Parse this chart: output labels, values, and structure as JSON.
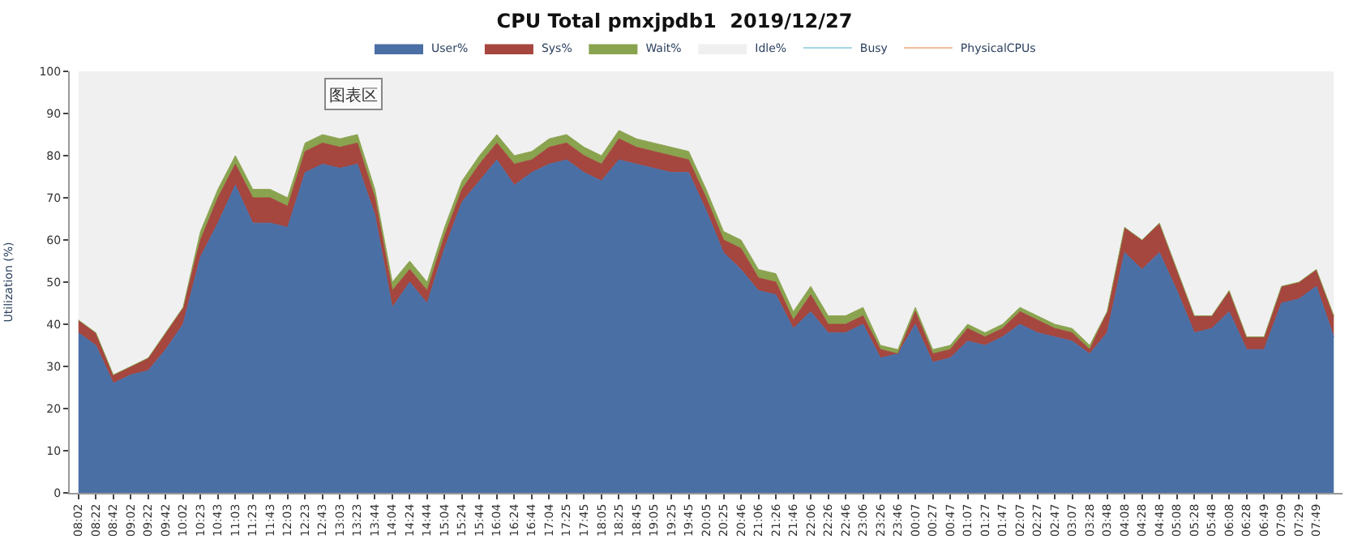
{
  "chart_data": {
    "type": "area",
    "title": "CPU Total pmxjpdb1  2019/12/27",
    "ylabel": "Utilization (%)",
    "stacked": true,
    "legend": "top",
    "ylim": [
      0,
      100
    ],
    "yticks": [
      0,
      10,
      20,
      30,
      40,
      50,
      60,
      70,
      80,
      90,
      100
    ],
    "annotations": [
      "图表区"
    ],
    "categories": [
      "08:02",
      "08:22",
      "08:42",
      "09:02",
      "09:22",
      "09:42",
      "10:02",
      "10:23",
      "10:43",
      "11:03",
      "11:23",
      "11:43",
      "12:03",
      "12:23",
      "12:43",
      "13:03",
      "13:23",
      "13:44",
      "14:04",
      "14:24",
      "14:44",
      "15:04",
      "15:24",
      "15:44",
      "16:04",
      "16:24",
      "16:44",
      "17:04",
      "17:25",
      "17:45",
      "18:05",
      "18:25",
      "18:45",
      "19:05",
      "19:25",
      "19:45",
      "20:05",
      "20:25",
      "20:46",
      "21:06",
      "21:26",
      "21:46",
      "22:06",
      "22:26",
      "22:46",
      "23:06",
      "23:26",
      "23:46",
      "00:07",
      "00:27",
      "00:47",
      "01:07",
      "01:27",
      "01:47",
      "02:07",
      "02:27",
      "02:47",
      "03:07",
      "03:28",
      "03:48",
      "04:08",
      "04:28",
      "04:48",
      "05:08",
      "05:28",
      "05:48",
      "06:08",
      "06:28",
      "06:49",
      "07:09",
      "07:29",
      "07:49",
      null
    ],
    "series": [
      {
        "name": "User%",
        "color": "#4a6fa5",
        "values": [
          38,
          35,
          26,
          28,
          29,
          34,
          40,
          56,
          64,
          73,
          64,
          64,
          63,
          76,
          78,
          77,
          78,
          66,
          44,
          50,
          45,
          58,
          69,
          74,
          79,
          73,
          76,
          78,
          79,
          76,
          74,
          79,
          78,
          77,
          76,
          76,
          67,
          57,
          53,
          48,
          47,
          39,
          43,
          38,
          38,
          40,
          32,
          33,
          40,
          31,
          32,
          36,
          35,
          37,
          40,
          38,
          37,
          36,
          33,
          38,
          57,
          53,
          57,
          48,
          38,
          39,
          43,
          34,
          34,
          45,
          46,
          49,
          37
        ]
      },
      {
        "name": "Sys%",
        "color": "#a5463f",
        "values": [
          3,
          3,
          2,
          2,
          3,
          4,
          4,
          4,
          6,
          5,
          6,
          6,
          5,
          5,
          5,
          5,
          5,
          4,
          4,
          3,
          3,
          3,
          3,
          4,
          4,
          5,
          3,
          4,
          4,
          4,
          4,
          5,
          4,
          4,
          4,
          3,
          3,
          3,
          5,
          3,
          3,
          2,
          4,
          2,
          2,
          2,
          2,
          0,
          3,
          2,
          2,
          3,
          2,
          2,
          3,
          3,
          2,
          2,
          1,
          5,
          6,
          7,
          7,
          5,
          4,
          3,
          5,
          3,
          3,
          4,
          4,
          4,
          5
        ]
      },
      {
        "name": "Wait%",
        "color": "#8aa34f",
        "values": [
          0,
          0,
          0,
          0,
          0,
          0,
          0,
          2,
          2,
          2,
          2,
          2,
          2,
          2,
          2,
          2,
          2,
          2,
          2,
          2,
          2,
          2,
          2,
          2,
          2,
          2,
          2,
          2,
          2,
          2,
          2,
          2,
          2,
          2,
          2,
          2,
          2,
          2,
          2,
          2,
          2,
          2,
          2,
          2,
          2,
          2,
          1,
          1,
          1,
          1,
          1,
          1,
          1,
          1,
          1,
          1,
          1,
          1,
          1,
          0,
          0,
          0,
          0,
          0,
          0,
          0,
          0,
          0,
          0,
          0,
          0,
          0,
          0
        ]
      },
      {
        "name": "Idle%",
        "color": "#f0f0f0",
        "values": [
          59,
          62,
          72,
          70,
          68,
          62,
          56,
          38,
          28,
          20,
          28,
          28,
          30,
          17,
          15,
          16,
          15,
          28,
          50,
          45,
          50,
          37,
          26,
          20,
          15,
          20,
          19,
          16,
          15,
          18,
          20,
          14,
          16,
          17,
          18,
          19,
          28,
          38,
          40,
          47,
          48,
          57,
          51,
          58,
          58,
          56,
          65,
          66,
          56,
          66,
          65,
          60,
          62,
          60,
          56,
          58,
          60,
          61,
          65,
          57,
          37,
          40,
          36,
          47,
          58,
          58,
          52,
          63,
          63,
          51,
          50,
          47,
          58
        ]
      },
      {
        "name": "Busy",
        "color": "#4bacc6",
        "values": [
          null,
          null,
          null,
          null,
          null,
          null,
          null,
          null,
          null,
          null,
          null,
          null,
          null,
          null,
          null,
          null,
          null,
          null,
          null,
          null,
          null,
          null,
          null,
          null,
          null,
          null,
          null,
          null,
          null,
          null,
          null,
          null,
          null,
          null,
          null,
          null,
          null,
          null,
          null,
          null,
          null,
          null,
          null,
          null,
          null,
          null,
          null,
          null,
          null,
          null,
          null,
          null,
          null,
          null,
          null,
          null,
          null,
          null,
          null,
          null,
          null,
          null,
          null,
          null,
          null,
          null,
          null,
          null,
          null,
          null,
          null,
          null,
          null
        ]
      },
      {
        "name": "PhysicalCPUs",
        "color": "#e07b39",
        "values": [
          null,
          null,
          null,
          null,
          null,
          null,
          null,
          null,
          null,
          null,
          null,
          null,
          null,
          null,
          null,
          null,
          null,
          null,
          null,
          null,
          null,
          null,
          null,
          null,
          null,
          null,
          null,
          null,
          null,
          null,
          null,
          null,
          null,
          null,
          null,
          null,
          null,
          null,
          null,
          null,
          null,
          null,
          null,
          null,
          null,
          null,
          null,
          null,
          null,
          null,
          null,
          null,
          null,
          null,
          null,
          null,
          null,
          null,
          null,
          null,
          null,
          null,
          null,
          null,
          null,
          null,
          null,
          null,
          null,
          null,
          null,
          null,
          null
        ]
      }
    ]
  }
}
